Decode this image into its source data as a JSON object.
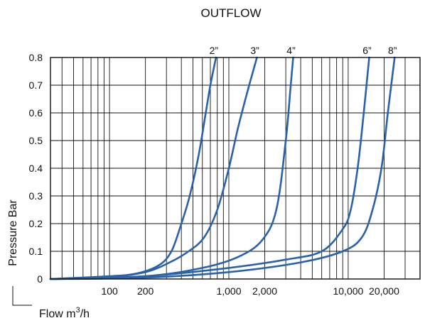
{
  "chart_data": {
    "type": "line",
    "title": "OUTFLOW",
    "ylabel": "Pressure Bar",
    "xlabel": "Flow  m³/h",
    "xscale": "log",
    "xlim": [
      32,
      40000
    ],
    "ylim": [
      0,
      0.8
    ],
    "grid": true,
    "line_color": "#2a62aa",
    "yticks": [
      0,
      0.1,
      0.2,
      0.3,
      0.4,
      0.5,
      0.6,
      0.7,
      0.8
    ],
    "ytick_labels": [
      "0",
      "0.1",
      "0.2",
      "0.3",
      "0.4",
      "0.5",
      "0.6",
      "0.7",
      "0.8"
    ],
    "xtick_labels": [
      {
        "x": 100,
        "label": "100"
      },
      {
        "x": 200,
        "label": "200"
      },
      {
        "x": 1000,
        "label": "1,000"
      },
      {
        "x": 2000,
        "label": "2,000"
      },
      {
        "x": 10000,
        "label": "10,000"
      },
      {
        "x": 20000,
        "label": "20,000"
      }
    ],
    "series": [
      {
        "name": "2”",
        "points": [
          [
            32,
            0
          ],
          [
            100,
            0.01
          ],
          [
            170,
            0.02
          ],
          [
            260,
            0.05
          ],
          [
            330,
            0.1
          ],
          [
            400,
            0.2
          ],
          [
            470,
            0.3
          ],
          [
            560,
            0.45
          ],
          [
            640,
            0.6
          ],
          [
            700,
            0.7
          ],
          [
            780,
            0.8
          ]
        ]
      },
      {
        "name": "3”",
        "points": [
          [
            32,
            0
          ],
          [
            100,
            0.008
          ],
          [
            200,
            0.025
          ],
          [
            320,
            0.06
          ],
          [
            460,
            0.1
          ],
          [
            620,
            0.15
          ],
          [
            800,
            0.25
          ],
          [
            1000,
            0.4
          ],
          [
            1200,
            0.55
          ],
          [
            1480,
            0.7
          ],
          [
            1720,
            0.8
          ]
        ]
      },
      {
        "name": "4”",
        "points": [
          [
            32,
            0
          ],
          [
            200,
            0.01
          ],
          [
            600,
            0.04
          ],
          [
            1200,
            0.08
          ],
          [
            1900,
            0.14
          ],
          [
            2500,
            0.25
          ],
          [
            3000,
            0.5
          ],
          [
            3300,
            0.7
          ],
          [
            3460,
            0.8
          ]
        ]
      },
      {
        "name": "6”",
        "points": [
          [
            32,
            0
          ],
          [
            200,
            0.01
          ],
          [
            1000,
            0.04
          ],
          [
            3000,
            0.07
          ],
          [
            6000,
            0.1
          ],
          [
            9000,
            0.18
          ],
          [
            10500,
            0.25
          ],
          [
            12000,
            0.4
          ],
          [
            13500,
            0.6
          ],
          [
            15000,
            0.8
          ]
        ]
      },
      {
        "name": "8”",
        "points": [
          [
            32,
            0
          ],
          [
            200,
            0.005
          ],
          [
            1000,
            0.025
          ],
          [
            4000,
            0.06
          ],
          [
            9000,
            0.1
          ],
          [
            13000,
            0.15
          ],
          [
            16000,
            0.25
          ],
          [
            19000,
            0.4
          ],
          [
            21500,
            0.6
          ],
          [
            24500,
            0.8
          ]
        ]
      }
    ]
  }
}
